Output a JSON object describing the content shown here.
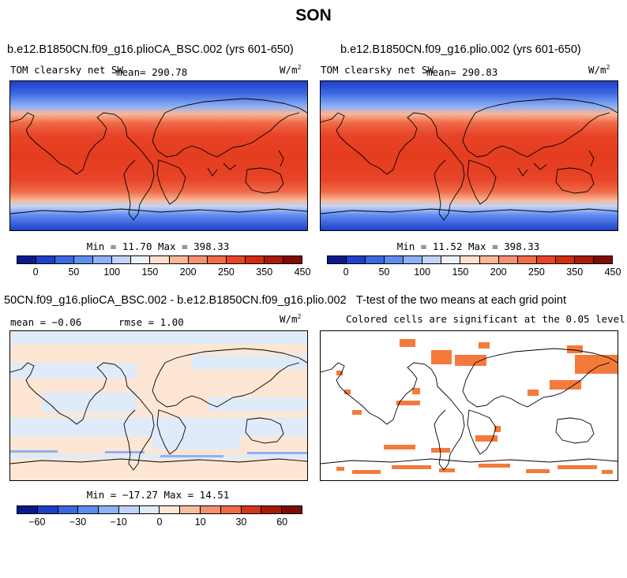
{
  "title": "SON",
  "panels": [
    {
      "case_title": "b.e12.B1850CN.f09_g16.plioCA_BSC.002 (yrs 601-650)",
      "variable": "TOM clearsky net SW",
      "mean_text": "mean= 290.78",
      "units_base": "W/m",
      "units_sup": "2",
      "minmax_text": "Min =  11.70 Max = 398.33",
      "colorbar_labels": [
        "0",
        "50",
        "100",
        "150",
        "200",
        "250",
        "350",
        "450"
      ]
    },
    {
      "case_title": "b.e12.B1850CN.f09_g16.plio.002 (yrs 601-650)",
      "variable": "TOM clearsky net SW",
      "mean_text": "mean= 290.83",
      "units_base": "W/m",
      "units_sup": "2",
      "minmax_text": "Min =  11.52 Max = 398.33",
      "colorbar_labels": [
        "0",
        "50",
        "100",
        "150",
        "200",
        "250",
        "350",
        "450"
      ]
    },
    {
      "case_title": "50CN.f09_g16.plioCA_BSC.002 - b.e12.B1850CN.f09_g16.plio.002",
      "mean_text": "mean =  −0.06",
      "rmse_text": "rmse =   1.00",
      "units_base": "W/m",
      "units_sup": "2",
      "minmax_text": "Min = −17.27 Max =  14.51",
      "colorbar_labels": [
        "−60",
        "−30",
        "−10",
        "0",
        "10",
        "30",
        "60"
      ]
    },
    {
      "case_title": "T-test of the two means at each grid point",
      "subtitle": "Colored cells are significant at the 0.05 level"
    }
  ],
  "colors": {
    "abs_scale": [
      "#0a1a8c",
      "#1f3fc8",
      "#3a68e0",
      "#5f8cf0",
      "#8fb0f6",
      "#c2d4f8",
      "#eef2fb",
      "#fde0cc",
      "#f8b898",
      "#f59070",
      "#ef6a48",
      "#e84428",
      "#cf2c12",
      "#a81a0a",
      "#7e0c04"
    ],
    "diff_scale": [
      "#0a1a8c",
      "#1f3fc8",
      "#3a68e0",
      "#5f8cf0",
      "#8fb0f6",
      "#c2d4f8",
      "#e0ebfa",
      "#fde6d4",
      "#f8c0a0",
      "#f59070",
      "#ef6a48",
      "#d43618",
      "#a81a0a",
      "#7e0c04"
    ],
    "significant": "#f47a3c"
  }
}
